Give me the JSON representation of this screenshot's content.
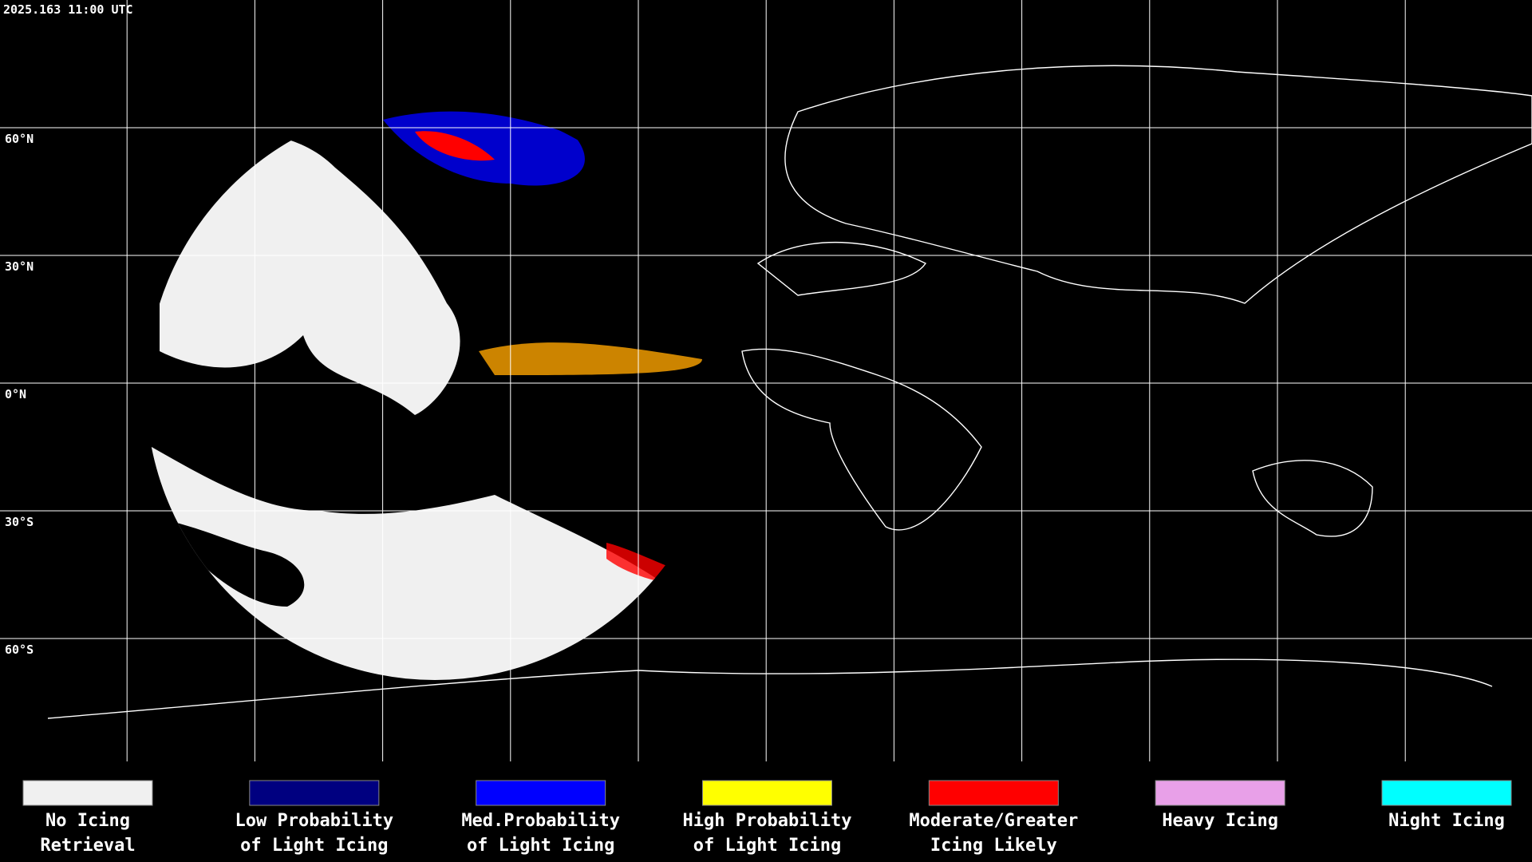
{
  "timestamp": "2025.163 11:00 UTC",
  "latitude_labels": [
    "60°N",
    "30°N",
    "0°N",
    "30°S",
    "60°S"
  ],
  "legend": [
    {
      "color": "#f0f0f0",
      "lines": [
        "No Icing",
        "Retrieval"
      ]
    },
    {
      "color": "#000080",
      "lines": [
        "Low Probability",
        "of Light Icing"
      ]
    },
    {
      "color": "#0000ff",
      "lines": [
        "Med.Probability",
        "of Light Icing"
      ]
    },
    {
      "color": "#ffff00",
      "lines": [
        "High Probability",
        "of Light Icing"
      ]
    },
    {
      "color": "#ff0000",
      "lines": [
        "Moderate/Greater",
        "Icing Likely"
      ]
    },
    {
      "color": "#e8a0e8",
      "lines": [
        "Heavy Icing"
      ]
    },
    {
      "color": "#00ffff",
      "lines": [
        "Night Icing"
      ]
    }
  ]
}
